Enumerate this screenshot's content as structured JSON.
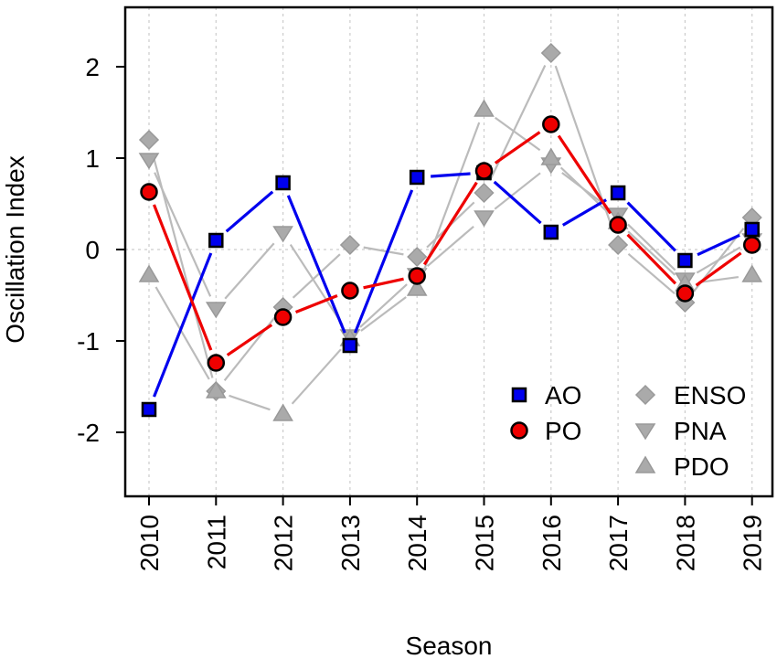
{
  "chart_data": {
    "type": "line",
    "xlabel": "Season",
    "ylabel": "Oscillation Index",
    "x": [
      "2010",
      "2011",
      "2012",
      "2013",
      "2014",
      "2015",
      "2016",
      "2017",
      "2018",
      "2019"
    ],
    "ylim": [
      -2.7,
      2.6
    ],
    "yticks": [
      -2,
      -1,
      0,
      1,
      2
    ],
    "grid": "dotted vertical gridlines at each season; dotted horizontal line at 0",
    "legend_position": "bottom-right",
    "series": [
      {
        "name": "ENSO",
        "marker": "diamond",
        "color": "#aaaaaa",
        "line_color": "#bbbbbb",
        "values": [
          1.2,
          -1.55,
          -0.63,
          0.05,
          -0.08,
          0.62,
          2.15,
          0.05,
          -0.58,
          0.35
        ]
      },
      {
        "name": "PNA",
        "marker": "triangle-down",
        "color": "#aaaaaa",
        "line_color": "#bbbbbb",
        "values": [
          0.98,
          -0.65,
          0.18,
          -0.95,
          -0.28,
          0.35,
          0.93,
          0.38,
          -0.33,
          0.1
        ]
      },
      {
        "name": "PDO",
        "marker": "triangle-up",
        "color": "#aaaaaa",
        "line_color": "#bbbbbb",
        "values": [
          -0.28,
          -1.55,
          -1.8,
          -0.98,
          -0.43,
          1.53,
          1.0,
          0.3,
          -0.38,
          -0.28
        ]
      },
      {
        "name": "AO",
        "marker": "square",
        "color": "#0000ee",
        "line_color": "#0000ee",
        "values": [
          -1.75,
          0.1,
          0.73,
          -1.05,
          0.79,
          0.84,
          0.19,
          0.62,
          -0.12,
          0.22
        ]
      },
      {
        "name": "PO",
        "marker": "circle",
        "color": "#ee0000",
        "line_color": "#ee0000",
        "values": [
          0.63,
          -1.24,
          -0.74,
          -0.45,
          -0.29,
          0.86,
          1.37,
          0.27,
          -0.48,
          0.05
        ]
      }
    ]
  }
}
